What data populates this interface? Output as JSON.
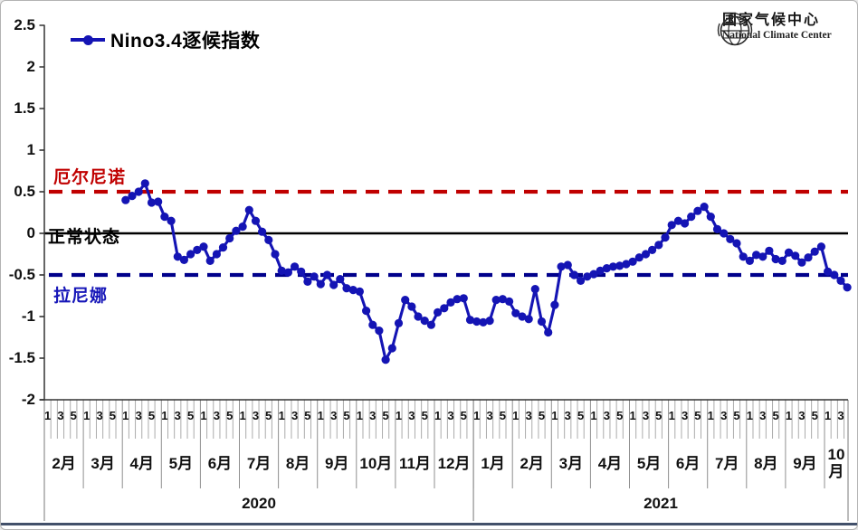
{
  "legend": {
    "label": "Nino3.4逐候指数"
  },
  "logo": {
    "name_cn": "国家气候中心",
    "name_en": "National Climate Center"
  },
  "chart_data": {
    "type": "line",
    "title": "Nino3.4逐候指数",
    "series_name": "Nino3.4逐候指数",
    "series_color": "#1414b4",
    "ylim": [
      -2,
      2.5
    ],
    "grid": "off",
    "legend_position": "top-left",
    "y_axis": {
      "tick_values": [
        2.5,
        2,
        1.5,
        1,
        0.5,
        0,
        -0.5,
        -1,
        -1.5,
        -2
      ],
      "tick_labels": [
        "2.5",
        "2",
        "1.5",
        "1",
        "0.5",
        "0",
        "-0.5",
        "-1",
        "-1.5",
        "-2"
      ]
    },
    "reference_lines": [
      {
        "name": "elnino_threshold",
        "value": 0.5,
        "style": "dashed",
        "color": "#c00000",
        "label": "厄尔尼诺"
      },
      {
        "name": "normal_state",
        "value": 0,
        "style": "solid",
        "color": "#000000",
        "label": "正常状态"
      },
      {
        "name": "lanina_threshold",
        "value": -0.5,
        "style": "dashed",
        "color": "#00008b",
        "label": "拉尼娜"
      }
    ],
    "x_axis": {
      "pentads_per_month": 6,
      "pentad_tick_labels": [
        "1",
        "3",
        "5"
      ],
      "years": [
        {
          "label": "2020"
        },
        {
          "label": "2021"
        }
      ]
    },
    "months": [
      {
        "year": 2020,
        "label": "2月",
        "values": [
          null,
          null,
          null,
          null,
          null,
          null
        ]
      },
      {
        "year": 2020,
        "label": "3月",
        "values": [
          null,
          null,
          null,
          null,
          null,
          null
        ]
      },
      {
        "year": 2020,
        "label": "4月",
        "values": [
          0.4,
          0.45,
          0.5,
          0.6,
          0.37,
          0.38
        ]
      },
      {
        "year": 2020,
        "label": "5月",
        "values": [
          0.2,
          0.15,
          -0.28,
          -0.32,
          -0.25,
          -0.2
        ]
      },
      {
        "year": 2020,
        "label": "6月",
        "values": [
          -0.16,
          -0.33,
          -0.25,
          -0.17,
          -0.06,
          0.03
        ]
      },
      {
        "year": 2020,
        "label": "7月",
        "values": [
          0.08,
          0.28,
          0.15,
          0.02,
          -0.08,
          -0.25
        ]
      },
      {
        "year": 2020,
        "label": "8月",
        "values": [
          -0.45,
          -0.47,
          -0.4,
          -0.46,
          -0.58,
          -0.52
        ]
      },
      {
        "year": 2020,
        "label": "9月",
        "values": [
          -0.61,
          -0.5,
          -0.62,
          -0.55,
          -0.66,
          -0.68
        ]
      },
      {
        "year": 2020,
        "label": "10月",
        "values": [
          -0.7,
          -0.93,
          -1.1,
          -1.17,
          -1.52,
          -1.38
        ]
      },
      {
        "year": 2020,
        "label": "11月",
        "values": [
          -1.08,
          -0.8,
          -0.88,
          -1.0,
          -1.05,
          -1.1
        ]
      },
      {
        "year": 2020,
        "label": "12月",
        "values": [
          -0.95,
          -0.9,
          -0.83,
          -0.79,
          -0.78,
          -1.04
        ]
      },
      {
        "year": 2021,
        "label": "1月",
        "values": [
          -1.06,
          -1.07,
          -1.05,
          -0.8,
          -0.79,
          -0.82
        ]
      },
      {
        "year": 2021,
        "label": "2月",
        "values": [
          -0.96,
          -1.0,
          -1.03,
          -0.67,
          -1.06,
          -1.19
        ]
      },
      {
        "year": 2021,
        "label": "3月",
        "values": [
          -0.86,
          -0.4,
          -0.38,
          -0.5,
          -0.57,
          -0.52
        ]
      },
      {
        "year": 2021,
        "label": "4月",
        "values": [
          -0.49,
          -0.45,
          -0.42,
          -0.4,
          -0.39,
          -0.37
        ]
      },
      {
        "year": 2021,
        "label": "5月",
        "values": [
          -0.34,
          -0.29,
          -0.25,
          -0.2,
          -0.14,
          -0.05
        ]
      },
      {
        "year": 2021,
        "label": "6月",
        "values": [
          0.1,
          0.15,
          0.12,
          0.2,
          0.27,
          0.32
        ]
      },
      {
        "year": 2021,
        "label": "7月",
        "values": [
          0.2,
          0.05,
          0.0,
          -0.07,
          -0.12,
          -0.28
        ]
      },
      {
        "year": 2021,
        "label": "8月",
        "values": [
          -0.33,
          -0.26,
          -0.28,
          -0.21,
          -0.31,
          -0.33
        ]
      },
      {
        "year": 2021,
        "label": "9月",
        "values": [
          -0.23,
          -0.27,
          -0.35,
          -0.29,
          -0.22,
          -0.16
        ]
      },
      {
        "year": 2021,
        "label": "10月",
        "values": [
          -0.46,
          -0.5,
          -0.57,
          -0.65,
          null,
          null
        ]
      }
    ]
  }
}
